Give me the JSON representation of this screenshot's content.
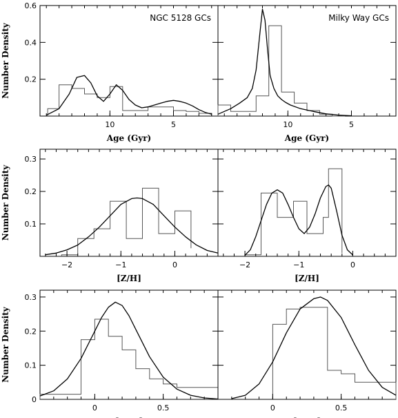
{
  "chart_data": [
    {
      "type": "histogram+curve",
      "title": "NGC 5128 GCs",
      "xlabel": "Age (Gyr)",
      "ylabel": "Number Density",
      "xlim": [
        15.5,
        1.5
      ],
      "ylim": [
        0,
        0.6
      ],
      "xticks": [
        10,
        5
      ],
      "yticks": [
        0.2,
        0.4,
        0.6
      ],
      "hist_edges": [
        14.9,
        14.0,
        13.0,
        12.0,
        11.0,
        10.0,
        9.0,
        8.0,
        7.0,
        6.0,
        5.0,
        4.0,
        3.0,
        2.0
      ],
      "hist_values": [
        0.04,
        0.17,
        0.15,
        0.12,
        0.1,
        0.16,
        0.03,
        0.03,
        0.05,
        0.05,
        0.03,
        0.025,
        0.015
      ],
      "curve": {
        "x": [
          15,
          14,
          13.2,
          12.6,
          12.0,
          11.5,
          11.0,
          10.5,
          10.0,
          9.5,
          9.0,
          8.5,
          8.0,
          7.5,
          7.0,
          6.5,
          6.0,
          5.5,
          5.0,
          4.5,
          4.0,
          3.5,
          3.0,
          2.5,
          2.0
        ],
        "y": [
          0.005,
          0.04,
          0.12,
          0.21,
          0.22,
          0.18,
          0.11,
          0.08,
          0.12,
          0.17,
          0.14,
          0.09,
          0.06,
          0.045,
          0.05,
          0.06,
          0.07,
          0.08,
          0.085,
          0.08,
          0.07,
          0.055,
          0.035,
          0.02,
          0.01
        ]
      }
    },
    {
      "type": "histogram+curve",
      "title": "Milky Way GCs",
      "xlabel": "Age (Gyr)",
      "ylabel": "",
      "xlim": [
        15.5,
        1.5
      ],
      "ylim": [
        0,
        0.6
      ],
      "xticks": [
        10,
        5
      ],
      "yticks": [
        0.2,
        0.4,
        0.6
      ],
      "hist_edges": [
        15.5,
        14.5,
        13.5,
        12.5,
        11.5,
        10.5,
        9.5,
        8.5,
        7.5,
        6.5,
        5.5
      ],
      "hist_values": [
        0.06,
        0.025,
        0.025,
        0.11,
        0.49,
        0.13,
        0.07,
        0.03,
        0.01,
        0.0
      ],
      "curve": {
        "x": [
          15.5,
          14.5,
          13.8,
          13.2,
          12.8,
          12.5,
          12.2,
          12.0,
          11.8,
          11.6,
          11.4,
          11.1,
          10.8,
          10.5,
          10.2,
          9.8,
          9.0,
          8.0,
          7.0,
          6.0,
          5.0
        ],
        "y": [
          0.01,
          0.04,
          0.07,
          0.1,
          0.15,
          0.25,
          0.45,
          0.58,
          0.52,
          0.36,
          0.22,
          0.15,
          0.11,
          0.09,
          0.075,
          0.06,
          0.04,
          0.025,
          0.012,
          0.005,
          0.002
        ]
      }
    },
    {
      "type": "histogram+curve",
      "title": "",
      "xlabel": "[Z/H]",
      "ylabel": "Number Density",
      "xlim": [
        -2.5,
        0.8
      ],
      "ylim": [
        0,
        0.33
      ],
      "xticks": [
        -2,
        -1,
        0
      ],
      "yticks": [
        0.1,
        0.2,
        0.3
      ],
      "hist_edges": [
        -2.1,
        -1.8,
        -1.5,
        -1.2,
        -0.9,
        -0.6,
        -0.3,
        0.0,
        0.3
      ],
      "hist_values": [
        0.005,
        0.055,
        0.085,
        0.17,
        0.055,
        0.21,
        0.07,
        0.14,
        0.025
      ],
      "curve": {
        "x": [
          -2.4,
          -2.2,
          -2.0,
          -1.8,
          -1.6,
          -1.4,
          -1.2,
          -1.0,
          -0.8,
          -0.7,
          -0.6,
          -0.4,
          -0.2,
          0.0,
          0.2,
          0.4,
          0.6,
          0.8
        ],
        "y": [
          0.005,
          0.01,
          0.02,
          0.035,
          0.06,
          0.09,
          0.125,
          0.16,
          0.178,
          0.18,
          0.178,
          0.16,
          0.125,
          0.09,
          0.06,
          0.035,
          0.018,
          0.01
        ]
      }
    },
    {
      "type": "histogram+curve",
      "title": "",
      "xlabel": "[Z/H]",
      "ylabel": "",
      "xlim": [
        -2.5,
        0.8
      ],
      "ylim": [
        0,
        0.33
      ],
      "xticks": [
        -2,
        -1,
        0
      ],
      "yticks": [
        0.1,
        0.2,
        0.3
      ],
      "hist_edges": [
        -2.0,
        -1.7,
        -1.4,
        -1.1,
        -0.85,
        -0.55,
        -0.45,
        -0.2
      ],
      "hist_values": [
        0.005,
        0.195,
        0.12,
        0.17,
        0.07,
        0.12,
        0.27,
        0.01
      ],
      "curve": {
        "x": [
          -2.0,
          -1.9,
          -1.8,
          -1.7,
          -1.6,
          -1.5,
          -1.4,
          -1.3,
          -1.2,
          -1.1,
          -1.0,
          -0.9,
          -0.8,
          -0.7,
          -0.6,
          -0.5,
          -0.45,
          -0.4,
          -0.3,
          -0.2,
          -0.1,
          0.0
        ],
        "y": [
          0.003,
          0.02,
          0.06,
          0.11,
          0.16,
          0.195,
          0.205,
          0.195,
          0.16,
          0.12,
          0.085,
          0.07,
          0.09,
          0.13,
          0.18,
          0.215,
          0.22,
          0.21,
          0.14,
          0.065,
          0.02,
          0.004
        ]
      }
    },
    {
      "type": "histogram+curve",
      "title": "",
      "xlabel": "[α/Fe]",
      "ylabel": "Number Density",
      "xlim": [
        -0.4,
        0.9
      ],
      "ylim": [
        0,
        0.32
      ],
      "xticks": [
        0,
        0.5
      ],
      "yticks": [
        0,
        0.1,
        0.2,
        0.3
      ],
      "hist_edges": [
        -0.4,
        -0.1,
        0.0,
        0.1,
        0.2,
        0.3,
        0.4,
        0.5,
        0.6,
        0.9
      ],
      "hist_values": [
        0.015,
        0.175,
        0.235,
        0.185,
        0.145,
        0.09,
        0.06,
        0.045,
        0.035
      ],
      "curve": {
        "x": [
          -0.4,
          -0.3,
          -0.2,
          -0.1,
          0.0,
          0.05,
          0.1,
          0.15,
          0.2,
          0.25,
          0.3,
          0.4,
          0.5,
          0.6,
          0.7,
          0.8,
          0.9
        ],
        "y": [
          0.01,
          0.025,
          0.06,
          0.12,
          0.2,
          0.24,
          0.27,
          0.285,
          0.275,
          0.245,
          0.205,
          0.125,
          0.065,
          0.03,
          0.012,
          0.004,
          0.001
        ]
      }
    },
    {
      "type": "histogram+curve",
      "title": "",
      "xlabel": "[α/Fe]",
      "ylabel": "",
      "xlim": [
        -0.4,
        0.9
      ],
      "ylim": [
        0,
        0.32
      ],
      "xticks": [
        0,
        0.5
      ],
      "yticks": [
        0,
        0.1,
        0.2,
        0.3
      ],
      "hist_edges": [
        0.0,
        0.1,
        0.2,
        0.3,
        0.4,
        0.5,
        0.6,
        0.9
      ],
      "hist_values": [
        0.22,
        0.265,
        0.27,
        0.27,
        0.085,
        0.075,
        0.05
      ],
      "curve": {
        "x": [
          -0.3,
          -0.2,
          -0.1,
          0.0,
          0.1,
          0.2,
          0.3,
          0.35,
          0.4,
          0.5,
          0.6,
          0.7,
          0.8,
          0.9
        ],
        "y": [
          0.002,
          0.012,
          0.045,
          0.11,
          0.195,
          0.265,
          0.295,
          0.3,
          0.29,
          0.24,
          0.16,
          0.085,
          0.035,
          0.012
        ]
      }
    }
  ]
}
